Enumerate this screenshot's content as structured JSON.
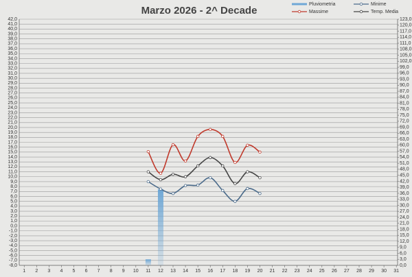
{
  "chart_data": {
    "type": "line",
    "title": "Marzo 2026 - 2^ Decade",
    "x": [
      11,
      12,
      13,
      14,
      15,
      16,
      17,
      18,
      19,
      20
    ],
    "xlim": [
      0.6,
      31.1
    ],
    "xticks": [
      1,
      2,
      3,
      4,
      5,
      6,
      7,
      8,
      9,
      10,
      11,
      12,
      13,
      14,
      15,
      16,
      17,
      18,
      19,
      20,
      21,
      22,
      23,
      24,
      25,
      26,
      27,
      28,
      29,
      30,
      31
    ],
    "ylim": [
      -8,
      42
    ],
    "yticks": [
      {
        "value": -8,
        "label": "-8,0"
      },
      {
        "value": -7,
        "label": "-7,0"
      },
      {
        "value": -6,
        "label": "-6,0"
      },
      {
        "value": -5,
        "label": "-5,0"
      },
      {
        "value": -4,
        "label": "-4,0"
      },
      {
        "value": -3,
        "label": "-3,0"
      },
      {
        "value": -2,
        "label": "-2,0"
      },
      {
        "value": -1,
        "label": "-1,0"
      },
      {
        "value": 0,
        "label": "0,0"
      },
      {
        "value": 1,
        "label": "1,0"
      },
      {
        "value": 2,
        "label": "2,0"
      },
      {
        "value": 3,
        "label": "3,0"
      },
      {
        "value": 4,
        "label": "4,0"
      },
      {
        "value": 5,
        "label": "5,0"
      },
      {
        "value": 6,
        "label": "6,0"
      },
      {
        "value": 7,
        "label": "7,0"
      },
      {
        "value": 8,
        "label": "8,0"
      },
      {
        "value": 9,
        "label": "9,0"
      },
      {
        "value": 10,
        "label": "10,0"
      },
      {
        "value": 11,
        "label": "11,0"
      },
      {
        "value": 12,
        "label": "12,0"
      },
      {
        "value": 13,
        "label": "13,0"
      },
      {
        "value": 14,
        "label": "14,0"
      },
      {
        "value": 15,
        "label": "15,0"
      },
      {
        "value": 16,
        "label": "16,0"
      },
      {
        "value": 17,
        "label": "17,0"
      },
      {
        "value": 18,
        "label": "18,0"
      },
      {
        "value": 19,
        "label": "19,0"
      },
      {
        "value": 20,
        "label": "20,0"
      },
      {
        "value": 21,
        "label": "21,0"
      },
      {
        "value": 22,
        "label": "22,0"
      },
      {
        "value": 23,
        "label": "23,0"
      },
      {
        "value": 24,
        "label": "24,0"
      },
      {
        "value": 25,
        "label": "25,0"
      },
      {
        "value": 26,
        "label": "26,0"
      },
      {
        "value": 27,
        "label": "27,0"
      },
      {
        "value": 28,
        "label": "28,0"
      },
      {
        "value": 29,
        "label": "29,0"
      },
      {
        "value": 30,
        "label": "30,0"
      },
      {
        "value": 31,
        "label": "31,0"
      },
      {
        "value": 32,
        "label": "32,0"
      },
      {
        "value": 33,
        "label": "33,0"
      },
      {
        "value": 34,
        "label": "34,0"
      },
      {
        "value": 35,
        "label": "35,0"
      },
      {
        "value": 36,
        "label": "36,0"
      },
      {
        "value": 37,
        "label": "37,0"
      },
      {
        "value": 38,
        "label": "38,0"
      },
      {
        "value": 39,
        "label": "39,0"
      },
      {
        "value": 40,
        "label": "40,0"
      },
      {
        "value": 41,
        "label": "41,0"
      },
      {
        "value": 42,
        "label": "42,0"
      }
    ],
    "y2lim": [
      0,
      123
    ],
    "y2ticks": [
      {
        "value": 0,
        "label": "0,0"
      },
      {
        "value": 3,
        "label": "3,0"
      },
      {
        "value": 6,
        "label": "6,0"
      },
      {
        "value": 9,
        "label": "9,0"
      },
      {
        "value": 12,
        "label": "12,0"
      },
      {
        "value": 15,
        "label": "15,0"
      },
      {
        "value": 18,
        "label": "18,0"
      },
      {
        "value": 21,
        "label": "21,0"
      },
      {
        "value": 24,
        "label": "24,0"
      },
      {
        "value": 27,
        "label": "27,0"
      },
      {
        "value": 30,
        "label": "30,0"
      },
      {
        "value": 33,
        "label": "33,0"
      },
      {
        "value": 36,
        "label": "36,0"
      },
      {
        "value": 39,
        "label": "39,0"
      },
      {
        "value": 42,
        "label": "42,0"
      },
      {
        "value": 45,
        "label": "45,0"
      },
      {
        "value": 48,
        "label": "48,0"
      },
      {
        "value": 51,
        "label": "51,0"
      },
      {
        "value": 54,
        "label": "54,0"
      },
      {
        "value": 57,
        "label": "57,0"
      },
      {
        "value": 60,
        "label": "60,0"
      },
      {
        "value": 63,
        "label": "63,0"
      },
      {
        "value": 66,
        "label": "66,0"
      },
      {
        "value": 69,
        "label": "69,0"
      },
      {
        "value": 72,
        "label": "72,0"
      },
      {
        "value": 75,
        "label": "75,0"
      },
      {
        "value": 78,
        "label": "78,0"
      },
      {
        "value": 81,
        "label": "81,0"
      },
      {
        "value": 84,
        "label": "84,0"
      },
      {
        "value": 87,
        "label": "87,0"
      },
      {
        "value": 90,
        "label": "90,0"
      },
      {
        "value": 93,
        "label": "93,0"
      },
      {
        "value": 96,
        "label": "96,0"
      },
      {
        "value": 99,
        "label": "99,0"
      },
      {
        "value": 102,
        "label": "102,0"
      },
      {
        "value": 105,
        "label": "105,0"
      },
      {
        "value": 108,
        "label": "108,0"
      },
      {
        "value": 111,
        "label": "111,0"
      },
      {
        "value": 114,
        "label": "114,0"
      },
      {
        "value": 117,
        "label": "117,0"
      },
      {
        "value": 120,
        "label": "120,0"
      },
      {
        "value": 123,
        "label": "123,0"
      }
    ],
    "grid": true,
    "series": [
      {
        "name": "Pluviometria",
        "type": "bar",
        "axis": "y2",
        "color": "#6fa8d6",
        "values": [
          3,
          38,
          null,
          null,
          null,
          null,
          null,
          null,
          null,
          null
        ]
      },
      {
        "name": "Minime",
        "type": "line",
        "color": "#4a6a8a",
        "values": [
          9.0,
          7.5,
          6.6,
          8.2,
          8.3,
          9.8,
          7.2,
          5.0,
          7.6,
          6.6
        ]
      },
      {
        "name": "Massime",
        "type": "line",
        "color": "#c0392b",
        "values": [
          15.1,
          10.7,
          16.5,
          13.2,
          18.2,
          19.6,
          18.2,
          12.9,
          16.4,
          15.0
        ]
      },
      {
        "name": "Temp. Media",
        "type": "line",
        "color": "#444444",
        "values": [
          11.0,
          9.4,
          10.5,
          10.0,
          12.2,
          13.9,
          12.2,
          8.6,
          11.0,
          9.8
        ]
      }
    ]
  }
}
